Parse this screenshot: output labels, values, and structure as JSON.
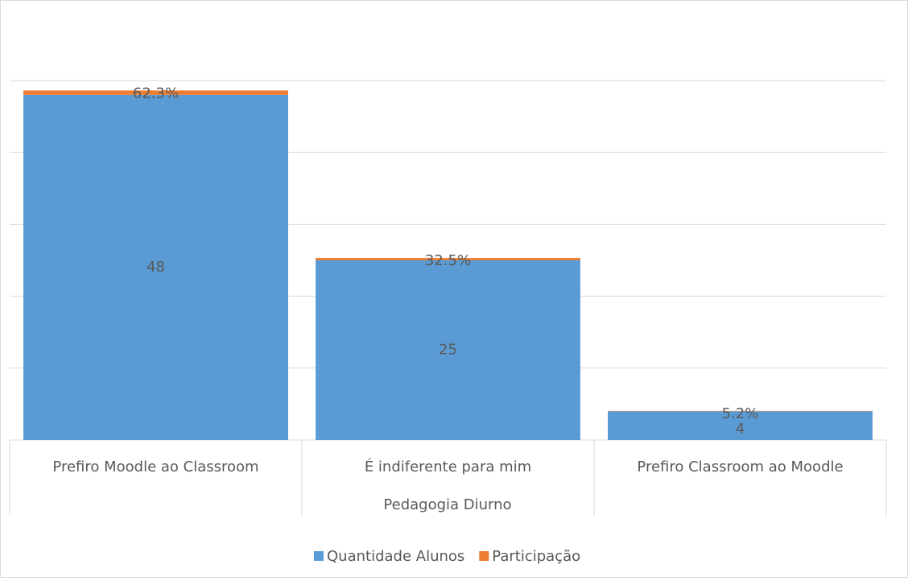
{
  "chart_data": {
    "type": "stacked_bar",
    "x_label": "Pedagogia Diurno",
    "categories": [
      "Prefiro Moodle ao Classroom",
      "É indiferente para mim",
      "Prefiro Classroom ao Moodle"
    ],
    "series": [
      {
        "name": "Quantidade Alunos",
        "color": "#5b9bd5",
        "values": [
          48,
          25,
          4
        ]
      },
      {
        "name": "Participação",
        "color": "#ed7d31",
        "values": [
          0.623,
          0.325,
          0.052
        ],
        "value_labels": [
          "62.3%",
          "32.5%",
          "5.2%"
        ]
      }
    ],
    "ylim": [
      0,
      50
    ],
    "yticks": [
      0,
      10,
      20,
      30,
      40,
      50
    ],
    "grid": true,
    "legend": "bottom"
  }
}
